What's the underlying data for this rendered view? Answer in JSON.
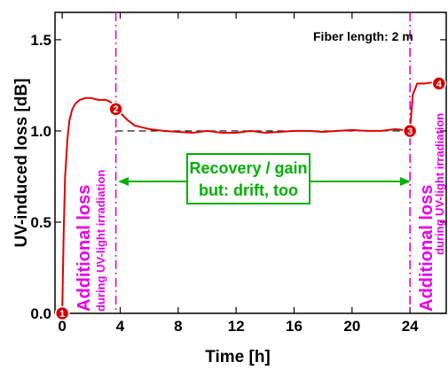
{
  "chart_data": {
    "type": "line",
    "title": "",
    "xlabel": "Time [h]",
    "ylabel": "UV-induced loss [dB]",
    "xlim": [
      -0.5,
      26.5
    ],
    "ylim": [
      0,
      1.65
    ],
    "x_ticks": [
      0,
      4,
      8,
      12,
      16,
      20,
      24
    ],
    "y_ticks": [
      0.0,
      0.5,
      1.0,
      1.5
    ],
    "x_tick_labels": [
      "0",
      "4",
      "8",
      "12",
      "16",
      "20",
      "24"
    ],
    "y_tick_labels": [
      "0.0",
      "0.5",
      "1.0",
      "1.5"
    ],
    "grid": false,
    "series": [
      {
        "color": "#e00000",
        "x": [
          0,
          0.1,
          0.2,
          0.35,
          0.5,
          0.7,
          0.9,
          1.2,
          1.6,
          2.0,
          2.5,
          3.0,
          3.3,
          3.6,
          3.8,
          4.0,
          4.5,
          5,
          5.5,
          6,
          7,
          8,
          9,
          10,
          11,
          12,
          13,
          14,
          15,
          16,
          17,
          18,
          19,
          20,
          21,
          22,
          23,
          23.5,
          23.8,
          24.0,
          24.2,
          24.5,
          25,
          25.5,
          26
        ],
        "y": [
          0.02,
          0.45,
          0.75,
          0.95,
          1.06,
          1.12,
          1.15,
          1.17,
          1.18,
          1.18,
          1.17,
          1.17,
          1.16,
          1.14,
          1.12,
          1.1,
          1.06,
          1.03,
          1.02,
          1.01,
          1.0,
          0.995,
          0.99,
          1.0,
          0.99,
          0.99,
          1.0,
          0.99,
          0.995,
          1.0,
          1.0,
          0.995,
          1.0,
          1.005,
          1.0,
          1.0,
          1.01,
          1.005,
          1.0,
          1.01,
          1.2,
          1.26,
          1.26,
          1.265,
          1.26
        ]
      }
    ],
    "reference_line": {
      "y": 1.0,
      "style": "dashed",
      "color": "#000000"
    },
    "vertical_lines": [
      {
        "x": 3.7,
        "color": "#e600e6",
        "style": "dash-dot"
      },
      {
        "x": 24.0,
        "color": "#e600e6",
        "style": "dash-dot"
      }
    ],
    "markers": [
      {
        "label": "1",
        "x": 0,
        "y": 0.0
      },
      {
        "label": "2",
        "x": 3.7,
        "y": 1.12
      },
      {
        "label": "3",
        "x": 24.0,
        "y": 1.0
      },
      {
        "label": "4",
        "x": 26.0,
        "y": 1.26
      }
    ],
    "annotations": {
      "fiber_length": "Fiber length: 2 m",
      "left_loss_big": "Additional loss",
      "left_loss_small": "during UV-light irradiation",
      "right_loss_big": "Additional loss",
      "right_loss_small": "during UV-light irradiation",
      "recovery_line1": "Recovery / gain",
      "recovery_line2": "but: drift, too"
    },
    "colors": {
      "curve": "#e00000",
      "magenta": "#e600e6",
      "green": "#00b000"
    }
  }
}
